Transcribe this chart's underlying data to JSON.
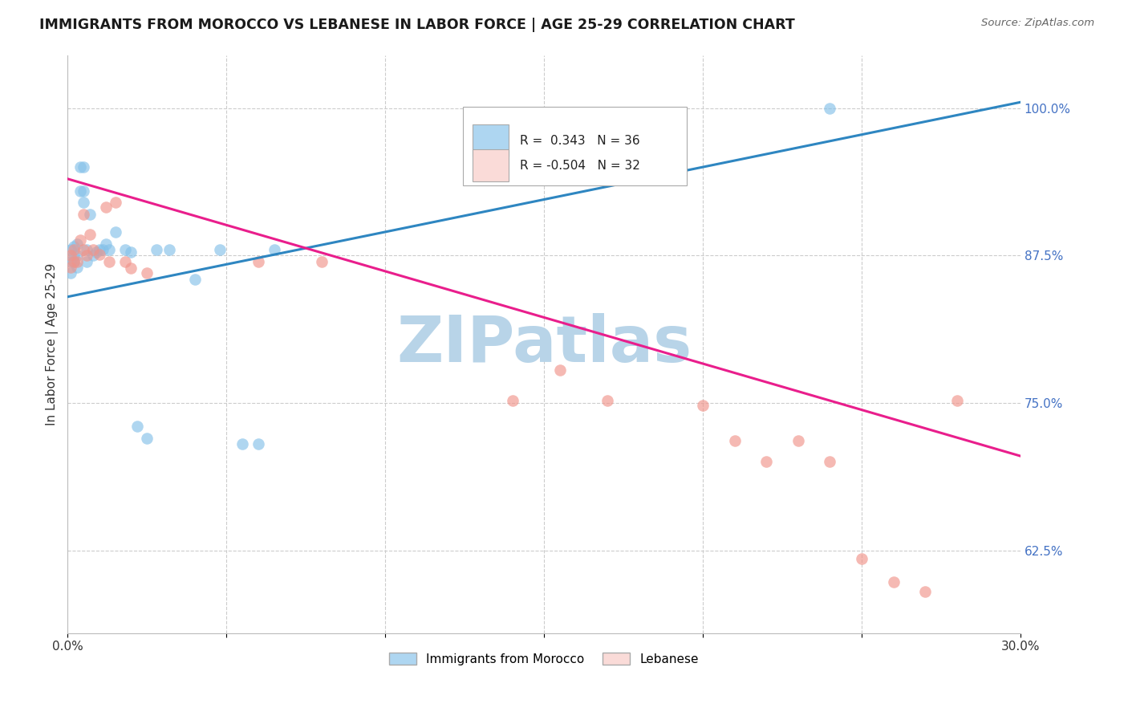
{
  "title": "IMMIGRANTS FROM MOROCCO VS LEBANESE IN LABOR FORCE | AGE 25-29 CORRELATION CHART",
  "source": "Source: ZipAtlas.com",
  "ylabel": "In Labor Force | Age 25-29",
  "xlim": [
    0.0,
    0.3
  ],
  "ylim": [
    0.555,
    1.045
  ],
  "xtick_positions": [
    0.0,
    0.05,
    0.1,
    0.15,
    0.2,
    0.25,
    0.3
  ],
  "xticklabels": [
    "0.0%",
    "",
    "",
    "",
    "",
    "",
    "30.0%"
  ],
  "yticks_right": [
    0.625,
    0.75,
    0.875,
    1.0
  ],
  "ytick_labels_right": [
    "62.5%",
    "75.0%",
    "87.5%",
    "100.0%"
  ],
  "grid_color": "#cccccc",
  "background_color": "#ffffff",
  "morocco_color": "#85C1E9",
  "lebanon_color": "#F1948A",
  "line_morocco_color": "#2E86C1",
  "line_lebanon_color": "#E91E8C",
  "legend_fill_morocco": "#AED6F1",
  "legend_fill_lebanon": "#FADBD8",
  "R_morocco": 0.343,
  "N_morocco": 36,
  "R_lebanon": -0.504,
  "N_lebanon": 32,
  "morocco_x": [
    0.001,
    0.001,
    0.001,
    0.002,
    0.002,
    0.002,
    0.003,
    0.003,
    0.003,
    0.004,
    0.004,
    0.005,
    0.005,
    0.005,
    0.006,
    0.006,
    0.007,
    0.008,
    0.009,
    0.01,
    0.011,
    0.012,
    0.013,
    0.015,
    0.018,
    0.02,
    0.022,
    0.025,
    0.028,
    0.032,
    0.04,
    0.048,
    0.055,
    0.06,
    0.065,
    0.24
  ],
  "morocco_y": [
    0.88,
    0.87,
    0.86,
    0.883,
    0.875,
    0.87,
    0.885,
    0.875,
    0.865,
    0.95,
    0.93,
    0.95,
    0.93,
    0.92,
    0.88,
    0.87,
    0.91,
    0.875,
    0.878,
    0.88,
    0.88,
    0.885,
    0.88,
    0.895,
    0.88,
    0.878,
    0.73,
    0.72,
    0.88,
    0.88,
    0.855,
    0.88,
    0.715,
    0.715,
    0.88,
    1.0
  ],
  "lebanon_x": [
    0.001,
    0.001,
    0.002,
    0.002,
    0.003,
    0.004,
    0.005,
    0.005,
    0.006,
    0.007,
    0.008,
    0.01,
    0.012,
    0.013,
    0.015,
    0.018,
    0.02,
    0.025,
    0.06,
    0.08,
    0.14,
    0.155,
    0.17,
    0.2,
    0.21,
    0.22,
    0.23,
    0.24,
    0.25,
    0.26,
    0.27,
    0.28
  ],
  "lebanon_y": [
    0.875,
    0.865,
    0.88,
    0.87,
    0.87,
    0.888,
    0.91,
    0.88,
    0.875,
    0.893,
    0.88,
    0.876,
    0.916,
    0.87,
    0.92,
    0.87,
    0.864,
    0.86,
    0.87,
    0.87,
    0.752,
    0.778,
    0.752,
    0.748,
    0.718,
    0.7,
    0.718,
    0.7,
    0.618,
    0.598,
    0.59,
    0.752
  ],
  "line_morocco_x0": 0.0,
  "line_morocco_x1": 0.3,
  "line_morocco_y0": 0.84,
  "line_morocco_y1": 1.005,
  "line_lebanon_x0": 0.0,
  "line_lebanon_x1": 0.3,
  "line_lebanon_y0": 0.94,
  "line_lebanon_y1": 0.705,
  "watermark": "ZIPatlas",
  "watermark_color": "#B8D4E8",
  "watermark_fontsize": 58
}
